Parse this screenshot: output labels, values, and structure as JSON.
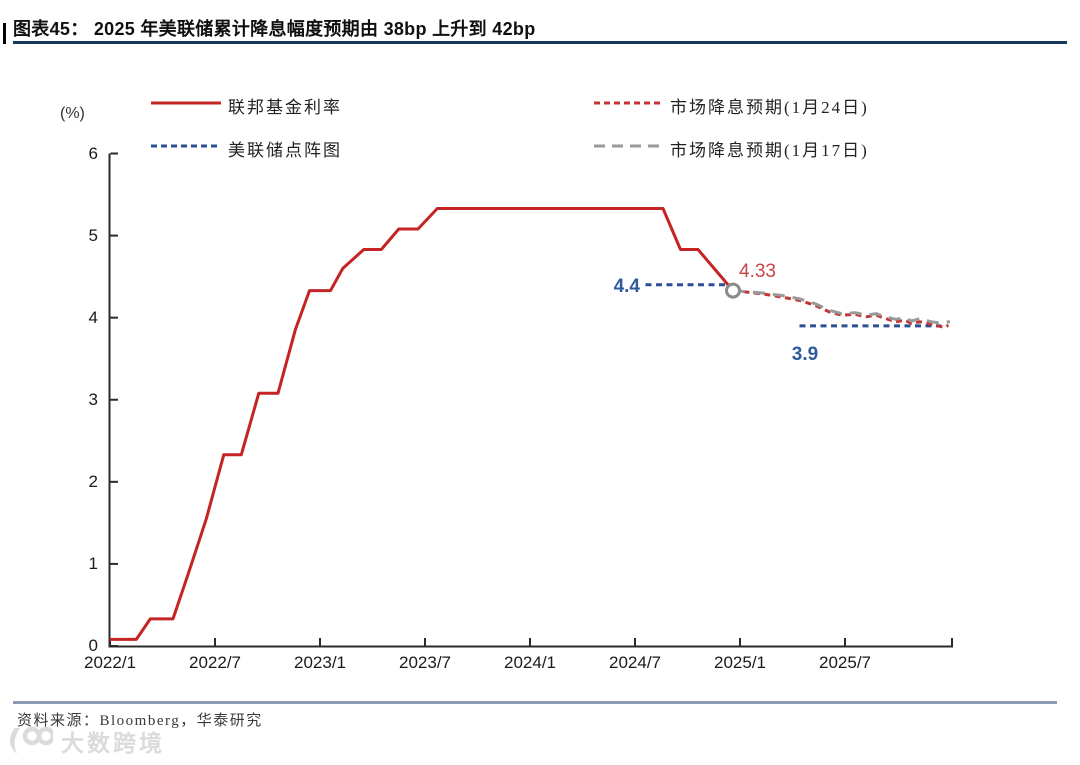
{
  "header": {
    "title": "图表45： 2025 年美联储累计降息幅度预期由 38bp 上升到 42bp"
  },
  "legend": {
    "items": [
      {
        "label": "联邦基金利率",
        "dash": "solid",
        "color_key": "fed_funds_red"
      },
      {
        "label": "美联储点阵图",
        "dash": "short",
        "color_key": "dot_plot_blue"
      },
      {
        "label": "市场降息预期(1月24日)",
        "dash": "short",
        "color_key": "market_jan24_red"
      },
      {
        "label": "市场降息预期(1月17日)",
        "dash": "long",
        "color_key": "market_jan17_gray"
      }
    ]
  },
  "colors": {
    "fed_funds_red": "#c42423",
    "dot_plot_blue": "#2a4f93",
    "market_jan24_red": "#c43434",
    "market_jan17_gray": "#9a9a9a",
    "annotation_blue": "#2f5b9d",
    "annotation_red": "#cb4444",
    "title_underline_navy": "#17375e",
    "footer_rule_gray": "#8a9bb0",
    "axis_color": "#2b2b2b",
    "marker_ring_gray": "#8a8a8a"
  },
  "chart_data": {
    "type": "line",
    "title": "2025 年美联储累计降息幅度预期由 38bp 上升到 42bp",
    "unit_label": "(%)",
    "xlabel": "",
    "ylabel": "(%)",
    "x_unit": "months_since_2022_01",
    "xlim": [
      0,
      48.2
    ],
    "ylim": [
      0,
      6
    ],
    "grid": false,
    "legend_position": "top",
    "yticks": [
      0,
      1,
      2,
      3,
      4,
      5,
      6
    ],
    "xticks": [
      {
        "m": 0,
        "label": "2022/1"
      },
      {
        "m": 6,
        "label": "2022/7"
      },
      {
        "m": 12,
        "label": "2023/1"
      },
      {
        "m": 18,
        "label": "2023/7"
      },
      {
        "m": 24,
        "label": "2024/1"
      },
      {
        "m": 30,
        "label": "2024/7"
      },
      {
        "m": 36,
        "label": "2025/1"
      },
      {
        "m": 42,
        "label": "2025/7"
      }
    ],
    "series": [
      {
        "name": "联邦基金利率",
        "color_key": "fed_funds_red",
        "dash": "solid",
        "segments": [
          [
            [
              0,
              0.08
            ],
            [
              1.5,
              0.08
            ],
            [
              2.3,
              0.33
            ],
            [
              3.6,
              0.33
            ],
            [
              4.5,
              0.9
            ],
            [
              5.5,
              1.55
            ],
            [
              6.5,
              2.33
            ],
            [
              7.5,
              2.33
            ],
            [
              8.5,
              3.08
            ],
            [
              9.6,
              3.08
            ],
            [
              10.6,
              3.86
            ],
            [
              11.4,
              4.33
            ],
            [
              12.6,
              4.33
            ],
            [
              13.3,
              4.6
            ],
            [
              14.5,
              4.83
            ],
            [
              15.5,
              4.83
            ],
            [
              16.5,
              5.08
            ],
            [
              17.6,
              5.08
            ],
            [
              18.7,
              5.33
            ],
            [
              31.6,
              5.33
            ],
            [
              32.6,
              4.83
            ],
            [
              33.6,
              4.83
            ],
            [
              35.6,
              4.33
            ]
          ]
        ]
      },
      {
        "name": "美联储点阵图",
        "color_key": "dot_plot_blue",
        "dash": "short",
        "segments": [
          [
            [
              30.6,
              4.4
            ],
            [
              35.5,
              4.4
            ]
          ],
          [
            [
              39.4,
              3.9
            ],
            [
              47.5,
              3.9
            ]
          ]
        ]
      },
      {
        "name": "市场降息预期(1月24日)",
        "color_key": "market_jan24_red",
        "dash": "short",
        "segments": [
          [
            [
              35.6,
              4.33
            ],
            [
              37.3,
              4.29
            ],
            [
              38.4,
              4.25
            ],
            [
              39.4,
              4.21
            ],
            [
              40.3,
              4.15
            ],
            [
              41.1,
              4.07
            ],
            [
              41.8,
              4.03
            ],
            [
              42.6,
              4.04
            ],
            [
              43.2,
              4.01
            ],
            [
              43.8,
              4.03
            ],
            [
              44.3,
              3.99
            ],
            [
              44.9,
              3.95
            ],
            [
              45.4,
              3.97
            ],
            [
              45.8,
              3.93
            ],
            [
              46.3,
              3.95
            ],
            [
              46.9,
              3.92
            ],
            [
              47.3,
              3.9
            ],
            [
              47.7,
              3.88
            ],
            [
              47.9,
              3.91
            ]
          ]
        ]
      },
      {
        "name": "市场降息预期(1月17日)",
        "color_key": "market_jan17_gray",
        "dash": "long",
        "segments": [
          [
            [
              35.6,
              4.33
            ],
            [
              37.3,
              4.3
            ],
            [
              38.4,
              4.27
            ],
            [
              39.4,
              4.23
            ],
            [
              40.3,
              4.17
            ],
            [
              41.1,
              4.09
            ],
            [
              41.8,
              4.05
            ],
            [
              42.6,
              4.06
            ],
            [
              43.2,
              4.03
            ],
            [
              43.8,
              4.05
            ],
            [
              44.3,
              4.01
            ],
            [
              44.9,
              3.98
            ],
            [
              45.4,
              4.0
            ],
            [
              45.8,
              3.96
            ],
            [
              46.3,
              3.99
            ],
            [
              46.9,
              3.95
            ],
            [
              47.3,
              3.94
            ],
            [
              48.0,
              3.95
            ]
          ]
        ]
      }
    ],
    "marker": {
      "m": 35.6,
      "v": 4.33
    },
    "annotations": [
      {
        "id": "dot2024",
        "text": "4.4",
        "color_key": "annotation_blue"
      },
      {
        "id": "current",
        "text": "4.33",
        "color_key": "annotation_red"
      },
      {
        "id": "dot2025",
        "text": "3.9",
        "color_key": "annotation_blue"
      }
    ]
  },
  "footer": {
    "source": "资料来源：Bloomberg，华泰研究",
    "watermark": "大数跨境"
  }
}
